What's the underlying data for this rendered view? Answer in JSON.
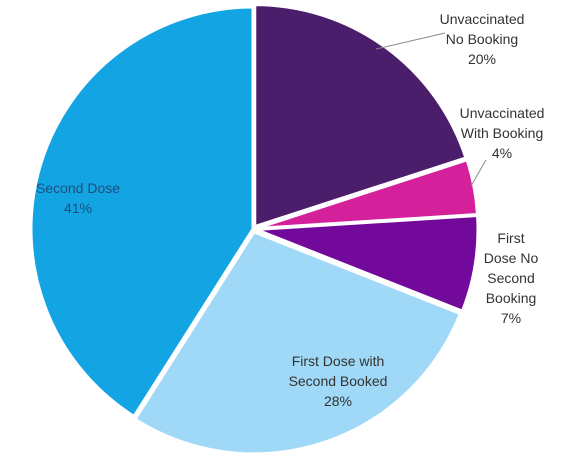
{
  "chart_data": {
    "type": "pie",
    "title": "",
    "start_angle_deg": 0,
    "direction": "clockwise",
    "slice_border_color": "#ffffff",
    "slices": [
      {
        "label_lines": [
          "Unvaccinated",
          "No Booking",
          "20%"
        ],
        "value": 20,
        "color": "#4a1e6b",
        "label_color": "#333333"
      },
      {
        "label_lines": [
          "Unvaccinated",
          "With Booking",
          "4%"
        ],
        "value": 4,
        "color": "#d4209a",
        "label_color": "#333333"
      },
      {
        "label_lines": [
          "First",
          "Dose No",
          "Second",
          "Booking",
          "7%"
        ],
        "value": 7,
        "color": "#72099a",
        "label_color": "#333333"
      },
      {
        "label_lines": [
          "First Dose with",
          "Second Booked",
          "28%"
        ],
        "value": 28,
        "color": "#9fd9f7",
        "label_color": "#333333"
      },
      {
        "label_lines": [
          "Second Dose",
          "41%"
        ],
        "value": 41,
        "color": "#13a4e4",
        "label_color": "#1d4f7a"
      }
    ]
  }
}
